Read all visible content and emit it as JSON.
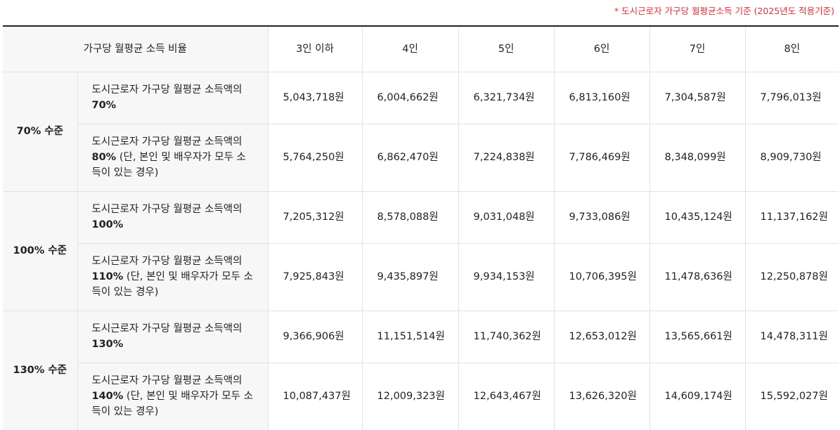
{
  "note": {
    "star": "*",
    "text": "도시근로자 가구당 월평균소득 기준 (2025년도 적용기준)"
  },
  "header": {
    "corner": "가구당 월평균 소득 비율",
    "columns": [
      "3인 이하",
      "4인",
      "5인",
      "6인",
      "7인",
      "8인"
    ]
  },
  "groups": [
    {
      "level": "70% 수준",
      "rows": [
        {
          "desc_prefix": "도시근로자 가구당 월평균 소득액의 ",
          "desc_pct": "70%",
          "desc_suffix": "",
          "values": [
            "5,043,718원",
            "6,004,662원",
            "6,321,734원",
            "6,813,160원",
            "7,304,587원",
            "7,796,013원"
          ]
        },
        {
          "desc_prefix": "도시근로자 가구당 월평균 소득액의 ",
          "desc_pct": "80%",
          "desc_suffix": " (단, 본인 및 배우자가 모두 소득이 있는 경우)",
          "values": [
            "5,764,250원",
            "6,862,470원",
            "7,224,838원",
            "7,786,469원",
            "8,348,099원",
            "8,909,730원"
          ]
        }
      ]
    },
    {
      "level": "100% 수준",
      "rows": [
        {
          "desc_prefix": "도시근로자 가구당 월평균 소득액의 ",
          "desc_pct": "100%",
          "desc_suffix": "",
          "values": [
            "7,205,312원",
            "8,578,088원",
            "9,031,048원",
            "9,733,086원",
            "10,435,124원",
            "11,137,162원"
          ]
        },
        {
          "desc_prefix": "도시근로자 가구당 월평균 소득액의 ",
          "desc_pct": "110%",
          "desc_suffix": " (단, 본인 및 배우자가 모두 소득이 있는 경우)",
          "values": [
            "7,925,843원",
            "9,435,897원",
            "9,934,153원",
            "10,706,395원",
            "11,478,636원",
            "12,250,878원"
          ]
        }
      ]
    },
    {
      "level": "130% 수준",
      "rows": [
        {
          "desc_prefix": "도시근로자 가구당 월평균 소득액의 ",
          "desc_pct": "130%",
          "desc_suffix": "",
          "values": [
            "9,366,906원",
            "11,151,514원",
            "11,740,362원",
            "12,653,012원",
            "13,565,661원",
            "14,478,311원"
          ]
        },
        {
          "desc_prefix": "도시근로자 가구당 월평균 소득액의 ",
          "desc_pct": "140%",
          "desc_suffix": " (단, 본인 및 배우자가 모두 소득이 있는 경우)",
          "values": [
            "10,087,437원",
            "12,009,323원",
            "12,643,467원",
            "13,626,320원",
            "14,609,174원",
            "15,592,027원"
          ]
        }
      ]
    }
  ],
  "colors": {
    "note": "#e0303a",
    "header_bg": "#f7f7f7",
    "border": "#e2e2e2",
    "top_rule": "#222222"
  }
}
